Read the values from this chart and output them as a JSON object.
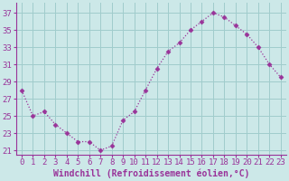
{
  "x": [
    0,
    1,
    2,
    3,
    4,
    5,
    6,
    7,
    8,
    9,
    10,
    11,
    12,
    13,
    14,
    15,
    16,
    17,
    18,
    19,
    20,
    21,
    22,
    23
  ],
  "y": [
    28.0,
    25.0,
    25.5,
    24.0,
    23.0,
    22.0,
    22.0,
    21.0,
    21.5,
    24.5,
    25.5,
    28.0,
    30.5,
    32.5,
    33.5,
    35.0,
    36.0,
    37.0,
    36.5,
    35.5,
    34.5,
    33.0,
    31.0,
    29.5
  ],
  "line_color": "#993399",
  "marker": "D",
  "marker_size": 2.5,
  "bg_color": "#cce8e8",
  "grid_color": "#a0cccc",
  "ylabel_ticks": [
    21,
    23,
    25,
    27,
    29,
    31,
    33,
    35,
    37
  ],
  "xlabel": "Windchill (Refroidissement éolien,°C)",
  "xlabel_fontsize": 7,
  "tick_fontsize": 6.5,
  "ylim": [
    20.5,
    38.2
  ],
  "xlim": [
    -0.5,
    23.5
  ]
}
